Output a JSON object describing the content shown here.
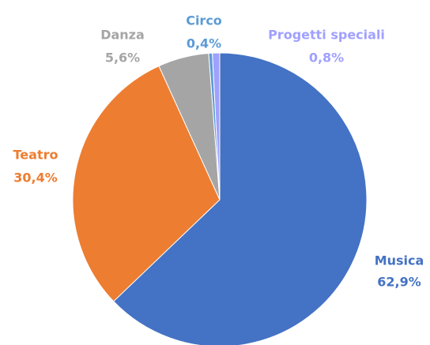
{
  "chart_data": {
    "type": "pie",
    "categories": [
      "Musica",
      "Teatro",
      "Danza",
      "Circo",
      "Progetti speciali"
    ],
    "values": [
      62.9,
      30.4,
      5.6,
      0.4,
      0.8
    ],
    "value_labels": [
      "62,9%",
      "30,4%",
      "5,6%",
      "0,4%",
      "0,8%"
    ],
    "colors": [
      "#4472c4",
      "#ed7d31",
      "#a5a5a5",
      "#5b9bd5",
      "#a0a0ff"
    ]
  }
}
